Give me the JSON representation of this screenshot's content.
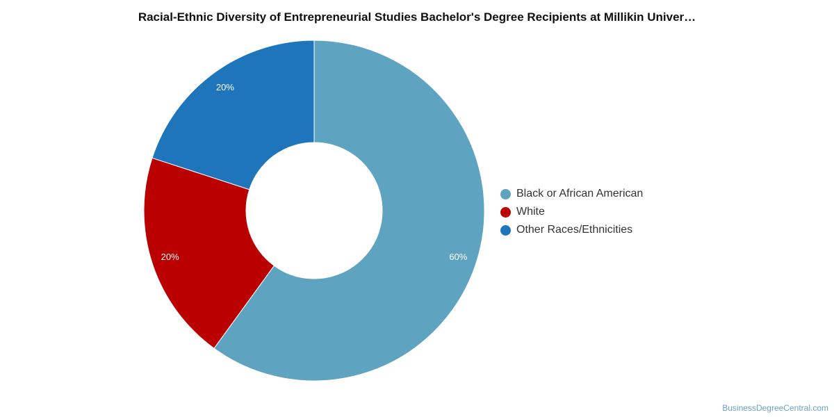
{
  "chart_data": {
    "type": "pie",
    "variant": "donut",
    "title": "Racial-Ethnic Diversity of Entrepreneurial Studies Bachelor's Degree Recipients at Millikin Univer…",
    "categories": [
      "Black or African American",
      "White",
      "Other Races/Ethnicities"
    ],
    "values": [
      60,
      20,
      20
    ],
    "labels": [
      "60%",
      "20%",
      "20%"
    ],
    "colors": [
      "#5ea3c0",
      "#bb0000",
      "#1f75bb"
    ],
    "legend_position": "right"
  },
  "watermark": "BusinessDegreeCentral.com"
}
